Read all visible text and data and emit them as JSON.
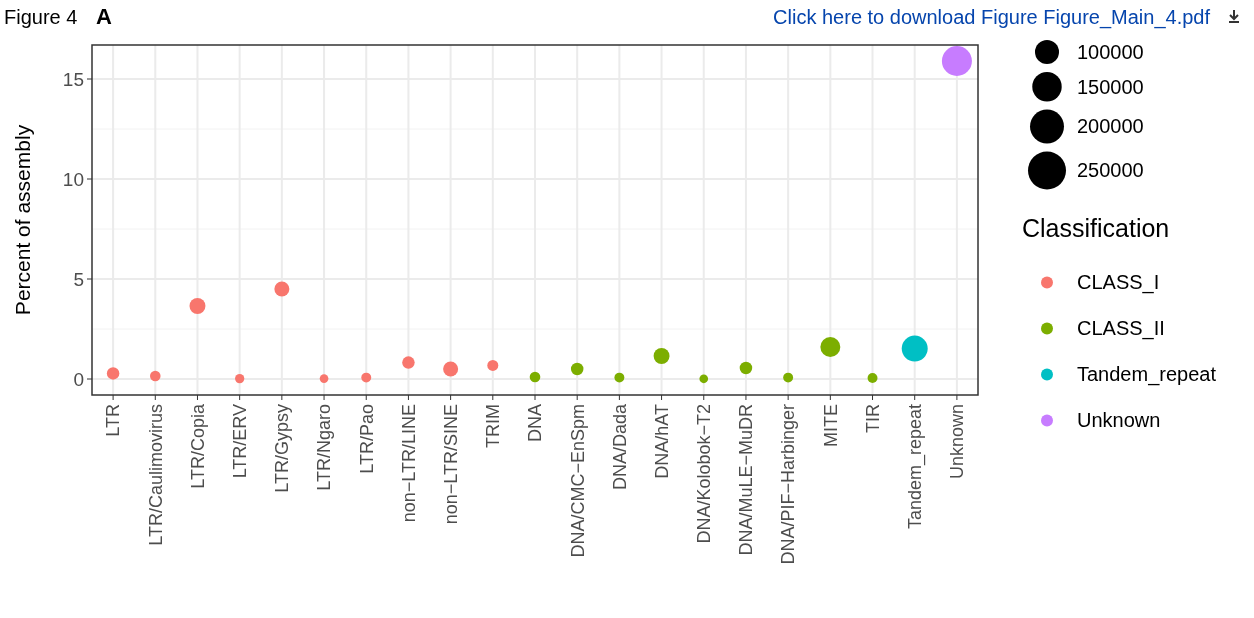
{
  "chart_data": {
    "type": "bubble",
    "ylabel": "Percent of assembly",
    "legend_title": "Classification",
    "annotations": [
      "Figure 4",
      "A",
      "Click here to download Figure Figure_Main_4.pdf"
    ],
    "categories": [
      "LTR",
      "LTR/Caulimovirus",
      "LTR/Copia",
      "LTR/ERV",
      "LTR/Gypsy",
      "LTR/Ngaro",
      "LTR/Pao",
      "non−LTR/LINE",
      "non−LTR/SINE",
      "TRIM",
      "DNA",
      "DNA/CMC−EnSpm",
      "DNA/Dada",
      "DNA/hAT",
      "DNA/Kolobok−T2",
      "DNA/MuLE−MuDR",
      "DNA/PIF−Harbinger",
      "MITE",
      "TIR",
      "Tandem_repeat",
      "Unknown"
    ],
    "series": [
      {
        "name": "CLASS_I",
        "color": "#f8766d",
        "values": [
          0.28,
          0.15,
          3.65,
          0.02,
          4.5,
          0.02,
          0.07,
          0.82,
          0.5,
          0.68,
          null,
          null,
          null,
          null,
          null,
          null,
          null,
          null,
          null,
          null,
          null
        ],
        "sizes": [
          27000,
          19500,
          44000,
          15000,
          39000,
          13000,
          17000,
          27000,
          39000,
          21000,
          null,
          null,
          null,
          null,
          null,
          null,
          null,
          null,
          null,
          null,
          null
        ]
      },
      {
        "name": "CLASS_II",
        "color": "#7cae00",
        "values": [
          null,
          null,
          null,
          null,
          null,
          null,
          null,
          null,
          null,
          null,
          0.1,
          0.5,
          0.07,
          1.15,
          0.01,
          0.55,
          0.07,
          1.6,
          0.05,
          null,
          null
        ],
        "sizes": [
          null,
          null,
          null,
          null,
          null,
          null,
          null,
          null,
          null,
          null,
          19500,
          27000,
          17000,
          44000,
          13000,
          27000,
          17000,
          69000,
          17000,
          null,
          null
        ]
      },
      {
        "name": "Tandem_repeat",
        "color": "#00bfc4",
        "values": [
          null,
          null,
          null,
          null,
          null,
          null,
          null,
          null,
          null,
          null,
          null,
          null,
          null,
          null,
          null,
          null,
          null,
          null,
          null,
          1.52,
          null
        ],
        "sizes": [
          null,
          null,
          null,
          null,
          null,
          null,
          null,
          null,
          null,
          null,
          null,
          null,
          null,
          null,
          null,
          null,
          null,
          null,
          null,
          117000,
          null
        ]
      },
      {
        "name": "Unknown",
        "color": "#c77cff",
        "values": [
          null,
          null,
          null,
          null,
          null,
          null,
          null,
          null,
          null,
          null,
          null,
          null,
          null,
          null,
          null,
          null,
          null,
          null,
          null,
          null,
          15.9
        ],
        "sizes": [
          null,
          null,
          null,
          null,
          null,
          null,
          null,
          null,
          null,
          null,
          null,
          null,
          null,
          null,
          null,
          null,
          null,
          null,
          null,
          null,
          156000
        ]
      }
    ],
    "size_legend": [
      100000,
      150000,
      200000,
      250000
    ],
    "ylim": [
      -0.8,
      16.7
    ],
    "yticks": [
      0,
      5,
      10,
      15
    ],
    "grid": true,
    "legend": "right"
  }
}
